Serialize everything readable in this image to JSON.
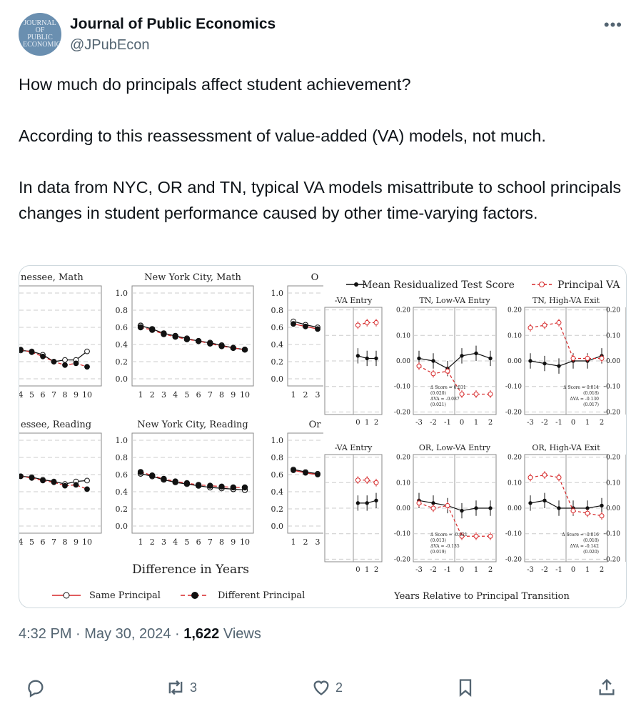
{
  "author": {
    "name": "Journal of Public Economics",
    "handle": "@JPubEcon",
    "avatar_text": "JOURNAL OF PUBLIC ECONOMICS",
    "avatar_color": "#6a8fb0"
  },
  "post": {
    "paragraphs": [
      "How much do principals affect student achievement?",
      "According to this reassessment of value-added (VA) models, not much.",
      "In data from NYC, OR and TN, typical VA models misattribute to school principals changes in student performance caused by other time-varying factors."
    ]
  },
  "meta": {
    "time": "4:32 PM",
    "date": "May 30, 2024",
    "views_count": "1,622",
    "views_label": "Views"
  },
  "actions": {
    "reply_count": "",
    "retweet_count": "3",
    "like_count": "2"
  },
  "colors": {
    "red": "#d62728",
    "black": "#111111"
  },
  "figure_left": {
    "panel_titles": [
      "nessee, Math",
      "New York City, Math",
      "O",
      "essee, Reading",
      "New York City, Reading",
      "Or"
    ],
    "y_ticks": [
      "1.0",
      "0.8",
      "0.6",
      "0.4",
      "0.2",
      "0.0"
    ],
    "x_ticks": [
      "1",
      "2",
      "3",
      "4",
      "5",
      "6",
      "7",
      "8",
      "9",
      "10"
    ],
    "xlabel": "Difference in Years",
    "legend": {
      "same": "Same Principal",
      "different": "Different Principal"
    }
  },
  "figure_right": {
    "legend": {
      "mean": "Mean Residualized Test Score",
      "va": "Principal VA"
    },
    "panel_titles": [
      "-VA Entry",
      "TN, Low-VA Entry",
      "TN, High-VA Exit",
      "-VA Entry",
      "OR, Low-VA Entry",
      "OR, High-VA Exit"
    ],
    "y_ticks": [
      "0.20",
      "0.10",
      "0.00",
      "-0.10",
      "-0.20"
    ],
    "x_ticks": [
      "-3",
      "-2",
      "-1",
      "0",
      "1",
      "2"
    ],
    "xlabel": "Years Relative to Principal Transition",
    "annotations": [
      [
        "Δ Score = 0.031",
        "(0.020)",
        "ΔVA = -0.087",
        "(0.021)"
      ],
      [
        "Δ Score = 0.014",
        "(0.018)",
        "ΔVA = -0.130",
        "(0.017)"
      ],
      [
        "Δ Score = -0.021",
        "(0.013)",
        "ΔVA = -0.135",
        "(0.019)"
      ],
      [
        "Δ Score = -0.016",
        "(0.018)",
        "ΔVA = -0.142",
        "(0.020)"
      ]
    ]
  },
  "chart_data": [
    {
      "type": "line",
      "title": "New York City, Math",
      "x": [
        1,
        2,
        3,
        4,
        5,
        6,
        7,
        8,
        9,
        10
      ],
      "series": [
        {
          "name": "Same Principal",
          "values": [
            0.62,
            0.58,
            0.53,
            0.5,
            0.47,
            0.44,
            0.42,
            0.39,
            0.36,
            0.34
          ]
        },
        {
          "name": "Different Principal",
          "values": [
            0.6,
            0.57,
            0.52,
            0.49,
            0.46,
            0.44,
            0.41,
            0.38,
            0.36,
            0.34
          ]
        }
      ],
      "xlabel": "Difference in Years",
      "ylim": [
        0,
        1.0
      ]
    },
    {
      "type": "line",
      "title": "New York City, Reading",
      "x": [
        1,
        2,
        3,
        4,
        5,
        6,
        7,
        8,
        9,
        10
      ],
      "series": [
        {
          "name": "Same Principal",
          "values": [
            0.61,
            0.58,
            0.54,
            0.51,
            0.49,
            0.47,
            0.45,
            0.44,
            0.43,
            0.42
          ]
        },
        {
          "name": "Different Principal",
          "values": [
            0.63,
            0.59,
            0.55,
            0.52,
            0.5,
            0.48,
            0.47,
            0.46,
            0.45,
            0.45
          ]
        }
      ],
      "xlabel": "Difference in Years",
      "ylim": [
        0,
        1.0
      ]
    },
    {
      "type": "line",
      "title": "TN, Low-VA Entry",
      "x": [
        -3,
        -2,
        -1,
        0,
        1,
        2
      ],
      "series": [
        {
          "name": "Mean Residualized Test Score",
          "values": [
            0.01,
            0.0,
            -0.03,
            0.02,
            0.03,
            0.01
          ]
        },
        {
          "name": "Principal VA",
          "values": [
            -0.02,
            -0.05,
            -0.04,
            -0.13,
            -0.13,
            -0.13
          ]
        }
      ],
      "xlabel": "Years Relative to Principal Transition",
      "ylim": [
        -0.2,
        0.2
      ]
    },
    {
      "type": "line",
      "title": "TN, High-VA Exit",
      "x": [
        -3,
        -2,
        -1,
        0,
        1,
        2
      ],
      "series": [
        {
          "name": "Mean Residualized Test Score",
          "values": [
            0.0,
            -0.01,
            -0.02,
            0.0,
            0.0,
            0.02
          ]
        },
        {
          "name": "Principal VA",
          "values": [
            0.13,
            0.14,
            0.15,
            0.01,
            0.01,
            0.01
          ]
        }
      ],
      "xlabel": "Years Relative to Principal Transition",
      "ylim": [
        -0.2,
        0.2
      ]
    },
    {
      "type": "line",
      "title": "OR, Low-VA Entry",
      "x": [
        -3,
        -2,
        -1,
        0,
        1,
        2
      ],
      "series": [
        {
          "name": "Mean Residualized Test Score",
          "values": [
            0.03,
            0.02,
            0.01,
            -0.01,
            0.0,
            0.0
          ]
        },
        {
          "name": "Principal VA",
          "values": [
            0.02,
            0.0,
            0.01,
            -0.11,
            -0.11,
            -0.11
          ]
        }
      ],
      "xlabel": "Years Relative to Principal Transition",
      "ylim": [
        -0.2,
        0.2
      ]
    },
    {
      "type": "line",
      "title": "OR, High-VA Exit",
      "x": [
        -3,
        -2,
        -1,
        0,
        1,
        2
      ],
      "series": [
        {
          "name": "Mean Residualized Test Score",
          "values": [
            0.02,
            0.03,
            0.0,
            0.0,
            0.0,
            0.01
          ]
        },
        {
          "name": "Principal VA",
          "values": [
            0.12,
            0.13,
            0.12,
            -0.01,
            -0.02,
            -0.03
          ]
        }
      ],
      "xlabel": "Years Relative to Principal Transition",
      "ylim": [
        -0.2,
        0.2
      ]
    }
  ]
}
